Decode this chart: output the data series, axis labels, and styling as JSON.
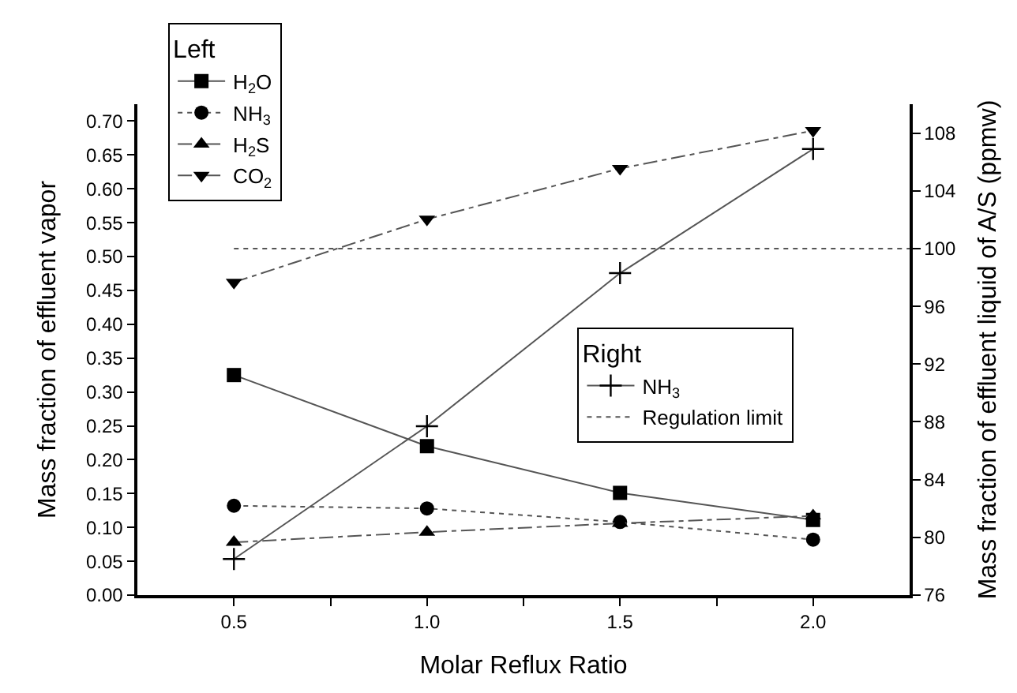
{
  "chart_data": {
    "type": "line",
    "xlabel": "Molar Reflux Ratio",
    "ylabel": "Mass fraction of effluent vapor",
    "y2label": "Mass fraction of effluent liquid of A/S (ppmw)",
    "legend_title": [
      "Left",
      "Right"
    ],
    "legend": [
      "top left",
      "center right"
    ],
    "x": [
      0.5,
      1.0,
      1.5,
      2.0
    ],
    "xlim": [
      0.25,
      2.25
    ],
    "xticks": [
      {
        "value": 0.5,
        "label": "0.5"
      },
      {
        "value": 0.75,
        "label": null
      },
      {
        "value": 1.0,
        "label": "1.0"
      },
      {
        "value": 1.25,
        "label": null
      },
      {
        "value": 1.5,
        "label": "1.5"
      },
      {
        "value": 1.75,
        "label": null
      },
      {
        "value": 2.0,
        "label": "2.0"
      }
    ],
    "ylim": [
      0,
      0.725
    ],
    "yticks": [
      {
        "value": 0,
        "label": "0.00"
      },
      {
        "value": 0.05,
        "label": "0.05"
      },
      {
        "value": 0.1,
        "label": "0.10"
      },
      {
        "value": 0.15,
        "label": "0.15"
      },
      {
        "value": 0.2,
        "label": "0.20"
      },
      {
        "value": 0.25,
        "label": "0.25"
      },
      {
        "value": 0.3,
        "label": "0.30"
      },
      {
        "value": 0.35,
        "label": "0.35"
      },
      {
        "value": 0.4,
        "label": "0.40"
      },
      {
        "value": 0.45,
        "label": "0.45"
      },
      {
        "value": 0.5,
        "label": "0.50"
      },
      {
        "value": 0.55,
        "label": "0.55"
      },
      {
        "value": 0.6,
        "label": "0.60"
      },
      {
        "value": 0.65,
        "label": "0.65"
      },
      {
        "value": 0.7,
        "label": "0.70"
      }
    ],
    "y2lim": [
      76,
      110
    ],
    "y2ticks": [
      76,
      80,
      84,
      88,
      92,
      96,
      100,
      104,
      108
    ],
    "grid": false,
    "series": [
      {
        "name": "NH$_{3}$",
        "color": "#000000",
        "marker": "cross",
        "line_style": "solid",
        "axis": "y2",
        "values": [
          78.5,
          87.7,
          98.3,
          106.9
        ]
      },
      {
        "name": "Regulation limit",
        "color": "#555555",
        "marker": "none",
        "line_style": "dotted",
        "axis": "y2",
        "x": [
          0.5,
          2.25
        ],
        "values": [
          100,
          100
        ]
      },
      {
        "name": "H$_{2}$O",
        "color": "#000000",
        "marker": "square",
        "line_style": "solid",
        "values": [
          0.325,
          0.22,
          0.151,
          0.111
        ]
      },
      {
        "name": "NH$_{3}$",
        "color": "#000000",
        "marker": "circle",
        "line_style": "dotted",
        "values": [
          0.132,
          0.128,
          0.108,
          0.082
        ]
      },
      {
        "name": "H$_{2}$S",
        "color": "#000000",
        "marker": "triangle",
        "line_style": "dashed",
        "values": [
          0.078,
          0.093,
          0.106,
          0.117
        ]
      },
      {
        "name": "CO$_{2}$",
        "color": "#000000",
        "marker": "triangle-down",
        "line_style": "dashed",
        "values": [
          0.462,
          0.555,
          0.63,
          0.686
        ]
      }
    ]
  }
}
